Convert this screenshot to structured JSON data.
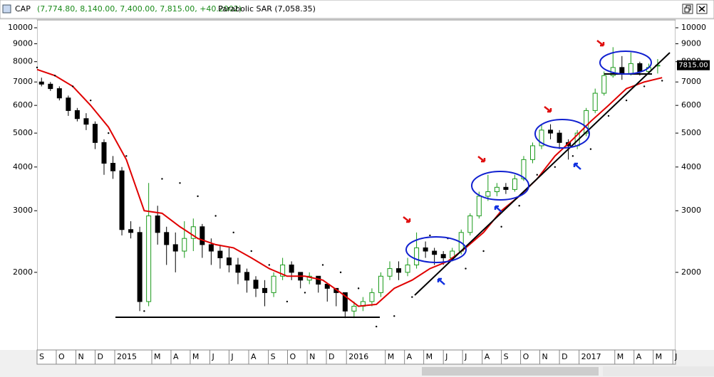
{
  "chart_data": {
    "type": "candlestick",
    "title": "CAP",
    "ohlc_label": "(7,774.80, 8,140.00, 7,400.00, 7,815.00, +40.2002)",
    "indicator_label": "Parabolic SAR (7,058.35)",
    "last_price_label": "7815.00",
    "log_scale": true,
    "ylim": [
      1200,
      10530
    ],
    "yticks": [
      2000,
      3000,
      4000,
      5000,
      6000,
      7000,
      8000,
      9000,
      10000
    ],
    "xlim": [
      0,
      143
    ],
    "xticks": [
      {
        "value": 0,
        "label": "S"
      },
      {
        "value": 4.3,
        "label": "O"
      },
      {
        "value": 8.7,
        "label": "N"
      },
      {
        "value": 13,
        "label": "D"
      },
      {
        "value": 17.4,
        "label": "2015"
      },
      {
        "value": 25.7,
        "label": "M"
      },
      {
        "value": 30,
        "label": "A"
      },
      {
        "value": 34.3,
        "label": "M"
      },
      {
        "value": 38.7,
        "label": "J"
      },
      {
        "value": 43,
        "label": "J"
      },
      {
        "value": 47.4,
        "label": "A"
      },
      {
        "value": 51.8,
        "label": "S"
      },
      {
        "value": 56.1,
        "label": "O"
      },
      {
        "value": 60.5,
        "label": "N"
      },
      {
        "value": 64.8,
        "label": "D"
      },
      {
        "value": 69.3,
        "label": "2016"
      },
      {
        "value": 78,
        "label": "M"
      },
      {
        "value": 82.3,
        "label": "A"
      },
      {
        "value": 86.6,
        "label": "M"
      },
      {
        "value": 91,
        "label": "J"
      },
      {
        "value": 95.3,
        "label": "J"
      },
      {
        "value": 99.7,
        "label": "A"
      },
      {
        "value": 104,
        "label": "S"
      },
      {
        "value": 108.3,
        "label": "O"
      },
      {
        "value": 112.6,
        "label": "N"
      },
      {
        "value": 117,
        "label": "D"
      },
      {
        "value": 121.4,
        "label": "2017"
      },
      {
        "value": 129.4,
        "label": "M"
      },
      {
        "value": 133.7,
        "label": "A"
      },
      {
        "value": 138,
        "label": "M"
      },
      {
        "value": 142.4,
        "label": "J"
      }
    ],
    "up_color": "#1a9a1a",
    "down_color": "#000000",
    "x": [
      1,
      3,
      5,
      7,
      9,
      11,
      13,
      15,
      17,
      19,
      21,
      23,
      25,
      27,
      29,
      31,
      33,
      35,
      37,
      39,
      41,
      43,
      45,
      47,
      49,
      51,
      53,
      55,
      57,
      59,
      61,
      63,
      65,
      67,
      69,
      71,
      73,
      75,
      77,
      79,
      81,
      83,
      85,
      87,
      89,
      91,
      93,
      95,
      97,
      99,
      101,
      103,
      105,
      107,
      109,
      111,
      113,
      115,
      117,
      119,
      121,
      123,
      125,
      127,
      129,
      131,
      133,
      135,
      137,
      139
    ],
    "open": [
      7000,
      6900,
      6700,
      6300,
      5800,
      5500,
      5300,
      4700,
      4100,
      3900,
      2650,
      2600,
      1650,
      2900,
      2600,
      2400,
      2300,
      2500,
      2700,
      2400,
      2300,
      2200,
      2100,
      2000,
      1900,
      1800,
      1750,
      1950,
      2100,
      2000,
      1900,
      1950,
      1850,
      1800,
      1750,
      1550,
      1600,
      1650,
      1750,
      1950,
      2050,
      2000,
      2100,
      2350,
      2300,
      2250,
      2200,
      2300,
      2600,
      2900,
      3300,
      3400,
      3500,
      3450,
      3700,
      4200,
      4600,
      5100,
      5000,
      4700,
      4600,
      5000,
      5800,
      6500,
      7300,
      7700,
      7400,
      7900,
      7500,
      7774.8
    ],
    "high": [
      7200,
      7000,
      6800,
      6400,
      5900,
      5700,
      5400,
      4800,
      4300,
      4000,
      2800,
      2700,
      3600,
      3100,
      2700,
      2600,
      2800,
      2850,
      2750,
      2500,
      2400,
      2350,
      2200,
      2050,
      1950,
      1900,
      2000,
      2200,
      2150,
      2000,
      2000,
      1950,
      1850,
      1800,
      1750,
      1650,
      1700,
      1800,
      2000,
      2150,
      2150,
      2200,
      2600,
      2450,
      2350,
      2300,
      2350,
      2650,
      2950,
      3400,
      3800,
      3600,
      3600,
      3800,
      4300,
      4700,
      5300,
      5300,
      5100,
      4800,
      5100,
      5900,
      6700,
      7500,
      8800,
      8300,
      8500,
      8000,
      7900,
      8140
    ],
    "low": [
      6800,
      6600,
      6200,
      5600,
      5400,
      5100,
      4500,
      3800,
      3700,
      2550,
      2500,
      1550,
      1600,
      2400,
      2100,
      2000,
      2200,
      2300,
      2200,
      2100,
      2050,
      2000,
      1850,
      1750,
      1700,
      1600,
      1700,
      1900,
      1900,
      1800,
      1850,
      1750,
      1650,
      1600,
      1480,
      1480,
      1550,
      1600,
      1700,
      1900,
      1900,
      1950,
      2050,
      2200,
      2100,
      2100,
      2150,
      2250,
      2550,
      2850,
      3200,
      3300,
      3350,
      3400,
      3650,
      4100,
      4500,
      4800,
      4500,
      4200,
      4500,
      4900,
      5700,
      6400,
      7200,
      7100,
      7300,
      7300,
      7400,
      7400
    ],
    "close": [
      6900,
      6700,
      6300,
      5800,
      5500,
      5300,
      4700,
      4100,
      3900,
      2650,
      2600,
      1650,
      2900,
      2600,
      2400,
      2300,
      2500,
      2700,
      2400,
      2300,
      2200,
      2100,
      2000,
      1900,
      1800,
      1750,
      1950,
      2100,
      2000,
      1900,
      1950,
      1850,
      1800,
      1750,
      1550,
      1600,
      1650,
      1750,
      1950,
      2050,
      2000,
      2100,
      2350,
      2300,
      2250,
      2200,
      2300,
      2600,
      2900,
      3300,
      3400,
      3500,
      3450,
      3700,
      4200,
      4600,
      5100,
      5000,
      4700,
      4600,
      5000,
      5800,
      6500,
      7300,
      7700,
      7400,
      7900,
      7500,
      7700,
      7815
    ],
    "moving_average": {
      "color": "#e00000",
      "x": [
        0,
        4,
        8,
        12,
        16,
        20,
        24,
        28,
        32,
        36,
        40,
        44,
        48,
        52,
        56,
        60,
        64,
        68,
        72,
        76,
        80,
        84,
        88,
        92,
        96,
        100,
        104,
        108,
        112,
        116,
        120,
        124,
        128,
        132,
        136,
        140
      ],
      "values": [
        7600,
        7300,
        6800,
        6000,
        5200,
        4200,
        3000,
        2950,
        2700,
        2500,
        2400,
        2350,
        2200,
        2050,
        1950,
        1950,
        1900,
        1750,
        1600,
        1620,
        1800,
        1900,
        2050,
        2150,
        2350,
        2600,
        3000,
        3300,
        3700,
        4300,
        4800,
        5400,
        6000,
        6700,
        7000,
        7200
      ]
    },
    "sar": {
      "name": "Parabolic SAR",
      "color": "#000000",
      "x": [
        0,
        4,
        8,
        12,
        16,
        20,
        24,
        28,
        32,
        36,
        40,
        44,
        48,
        52,
        56,
        60,
        64,
        68,
        72,
        76,
        80,
        84,
        88,
        92,
        96,
        100,
        104,
        108,
        112,
        116,
        120,
        124,
        128,
        132,
        136,
        140
      ],
      "values": [
        7700,
        7300,
        6800,
        6200,
        5000,
        4300,
        1550,
        3700,
        3600,
        3300,
        2900,
        2600,
        2300,
        2100,
        1650,
        1750,
        2100,
        2000,
        1800,
        1400,
        1500,
        1700,
        2550,
        2500,
        2050,
        2300,
        2700,
        3100,
        3800,
        4000,
        4300,
        4500,
        5600,
        6200,
        6800,
        7058.35
      ]
    }
  }
}
